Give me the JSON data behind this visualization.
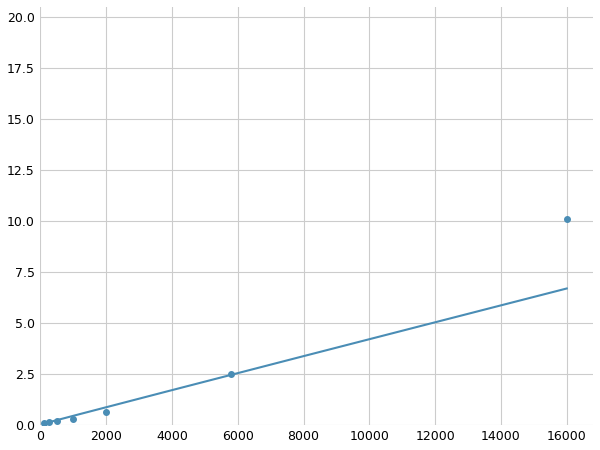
{
  "x": [
    125,
    250,
    500,
    1000,
    2000,
    5800,
    16000
  ],
  "y": [
    0.08,
    0.13,
    0.18,
    0.26,
    0.6,
    2.5,
    10.1
  ],
  "line_color": "#4a8db5",
  "marker_color": "#4a8db5",
  "marker_size": 4,
  "xlim": [
    0,
    16800
  ],
  "ylim": [
    0,
    20.5
  ],
  "xticks": [
    0,
    2000,
    4000,
    6000,
    8000,
    10000,
    12000,
    14000,
    16000
  ],
  "yticks": [
    0.0,
    2.5,
    5.0,
    7.5,
    10.0,
    12.5,
    15.0,
    17.5,
    20.0
  ],
  "grid_color": "#cccccc",
  "background_color": "#ffffff",
  "figure_bg": "#ffffff"
}
